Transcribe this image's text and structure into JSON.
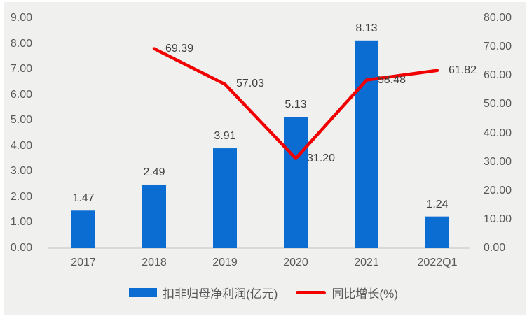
{
  "chart_data": {
    "type": "combo",
    "categories": [
      "2017",
      "2018",
      "2019",
      "2020",
      "2021",
      "2022Q1"
    ],
    "series": [
      {
        "name": "扣非归母净利润(亿元)",
        "type": "bar",
        "axis": "left",
        "color": "#0B6DD1",
        "values": [
          1.47,
          2.49,
          3.91,
          5.13,
          8.13,
          1.24
        ],
        "labels": [
          "1.47",
          "2.49",
          "3.91",
          "5.13",
          "8.13",
          "1.24"
        ]
      },
      {
        "name": "同比增长(%)",
        "type": "line",
        "axis": "right",
        "color": "#F20000",
        "values": [
          null,
          69.39,
          57.03,
          31.2,
          58.48,
          61.82
        ],
        "labels": [
          "",
          "69.39",
          "57.03",
          "31.20",
          "58.48",
          "61.82"
        ]
      }
    ],
    "left_axis": {
      "min": 0,
      "max": 9,
      "step": 1,
      "tick_labels": [
        "0.00",
        "1.00",
        "2.00",
        "3.00",
        "4.00",
        "5.00",
        "6.00",
        "7.00",
        "8.00",
        "9.00"
      ]
    },
    "right_axis": {
      "min": 0,
      "max": 80,
      "step": 10,
      "tick_labels": [
        "0.00",
        "10.00",
        "20.00",
        "30.00",
        "40.00",
        "50.00",
        "60.00",
        "70.00",
        "80.00"
      ]
    },
    "grid": false,
    "legend_position": "bottom",
    "colors": {
      "background": "#F0F0EF",
      "axis_line": "#D9D9D9",
      "axis_text": "#595959",
      "data_label_text": "#404040"
    }
  }
}
